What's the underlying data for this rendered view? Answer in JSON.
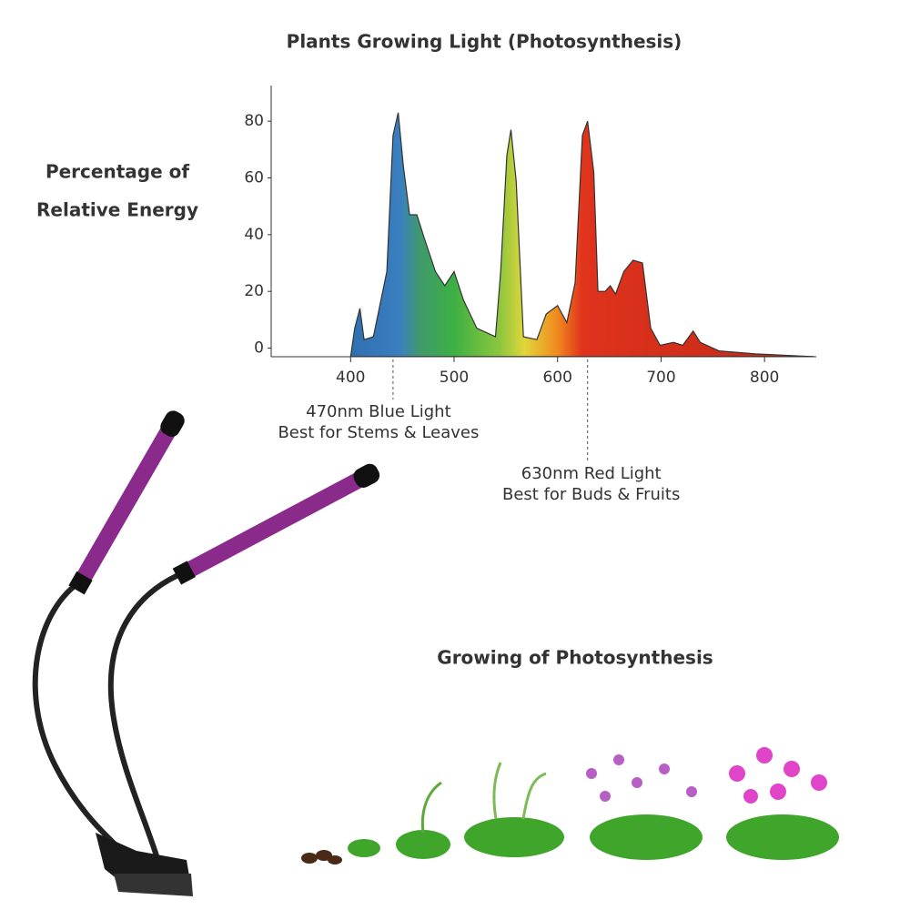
{
  "chart_data": {
    "type": "area",
    "title": "Plants Growing Light (Photosynthesis)",
    "ylabel": [
      "Percentage of",
      "Relative Energy"
    ],
    "x": [
      400,
      404,
      409,
      413,
      422,
      435,
      441,
      446,
      451,
      457,
      464,
      471,
      482,
      491,
      500,
      509,
      522,
      540,
      545,
      551,
      555,
      560,
      567,
      580,
      589,
      600,
      609,
      617,
      624,
      629,
      635,
      639,
      646,
      651,
      656,
      664,
      673,
      682,
      690,
      699,
      712,
      721,
      731,
      738,
      756,
      791,
      848
    ],
    "values": [
      -3,
      7,
      14,
      3,
      4,
      27,
      75,
      83,
      64,
      47,
      47,
      39,
      27,
      22,
      27,
      17,
      7,
      4,
      27,
      68,
      77,
      59,
      4,
      3,
      12,
      15,
      9,
      23,
      75,
      80,
      62,
      20,
      20,
      22,
      19,
      27,
      31,
      30,
      7,
      1,
      2,
      1,
      6,
      2,
      -1,
      -2,
      -3
    ],
    "xlim": [
      325,
      850
    ],
    "ylim": [
      -4,
      90
    ],
    "xticks": [
      400,
      500,
      600,
      700,
      800
    ],
    "yticks": [
      0,
      20,
      40,
      60,
      80
    ],
    "annotations": [
      {
        "x": 441,
        "lines": [
          "470nm Blue Light",
          "Best for Stems & Leaves"
        ]
      },
      {
        "x": 629,
        "lines": [
          "630nm Red Light",
          "Best for Buds & Fruits"
        ]
      }
    ]
  },
  "illustration": {
    "title": "Growing of Photosynthesis"
  }
}
